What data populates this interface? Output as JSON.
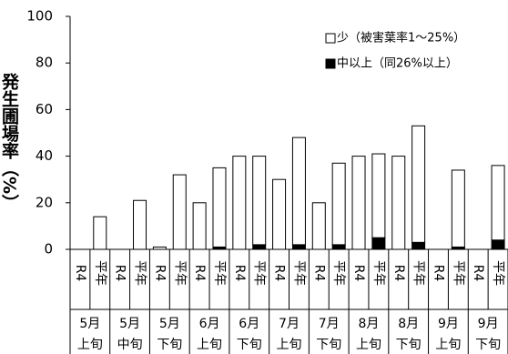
{
  "chart_data": {
    "type": "stacked_bar",
    "y_label": "発生圃場率（%）",
    "categories": [
      "R4",
      "平年",
      "R4",
      "平年",
      "R4",
      "平年",
      "R4",
      "平年",
      "R4",
      "平年",
      "R4",
      "平年",
      "R4",
      "平年",
      "R4",
      "平年",
      "R4",
      "平年",
      "R4",
      "平年",
      "R4",
      "平年"
    ],
    "groups": [
      {
        "month": "5月",
        "part": "上旬"
      },
      {
        "month": "5月",
        "part": "中旬"
      },
      {
        "month": "5月",
        "part": "下旬"
      },
      {
        "month": "6月",
        "part": "上旬"
      },
      {
        "month": "6月",
        "part": "下旬"
      },
      {
        "month": "7月",
        "part": "上旬"
      },
      {
        "month": "7月",
        "part": "下旬"
      },
      {
        "month": "8月",
        "part": "上旬"
      },
      {
        "month": "8月",
        "part": "下旬"
      },
      {
        "month": "9月",
        "part": "上旬"
      },
      {
        "month": "9月",
        "part": "下旬"
      }
    ],
    "series": [
      {
        "name": "少（被害葉率1～25%）",
        "color": "#ffffff",
        "values": [
          0,
          14,
          0,
          21,
          1,
          32,
          20,
          34,
          40,
          38,
          30,
          46,
          20,
          35,
          40,
          36,
          40,
          50,
          0,
          33,
          0,
          32
        ]
      },
      {
        "name": "中以上（同26%以上）",
        "color": "#000000",
        "values": [
          0,
          0,
          0,
          0,
          0,
          0,
          0,
          1,
          0,
          2,
          0,
          2,
          0,
          2,
          0,
          5,
          0,
          3,
          0,
          1,
          0,
          4
        ]
      }
    ],
    "ylim": [
      0,
      100
    ],
    "yticks": [
      0,
      20,
      40,
      60,
      80,
      100
    ],
    "legend": "upper right"
  }
}
